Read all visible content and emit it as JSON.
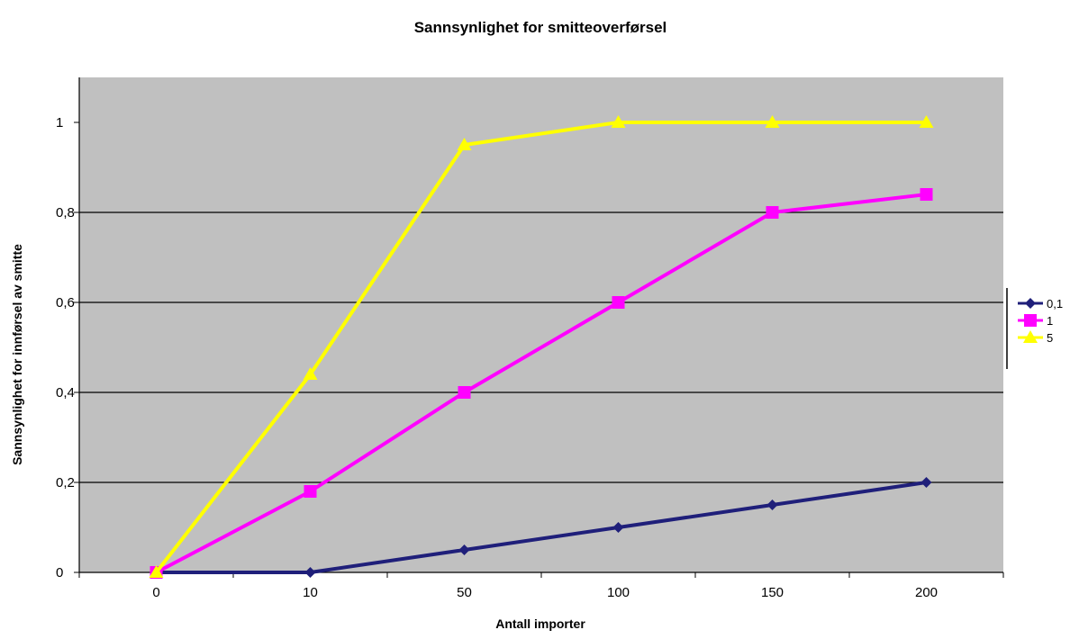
{
  "chart_data": {
    "type": "line",
    "title": "Sannsynlighet for smitteoverførsel",
    "xlabel": "Antall importer",
    "ylabel": "Sannsynlighet for innførsel av smitte",
    "categories": [
      "0",
      "10",
      "50",
      "100",
      "150",
      "200"
    ],
    "ylim": [
      0,
      1.1
    ],
    "yticks": [
      0,
      0.2,
      0.4,
      0.6,
      0.8,
      1
    ],
    "ytick_labels": [
      "0",
      "0,2",
      "0,4",
      "0,6",
      "0,8",
      "1"
    ],
    "grid": "horizontal major lines at 0,4, 0,6 and 0,8",
    "plot_background": "#c0c0c0",
    "legend_position": "right",
    "series": [
      {
        "name": "0,1",
        "values": [
          0,
          0,
          0.05,
          0.1,
          0.15,
          0.2
        ],
        "color": "#1f1f7a",
        "marker": "diamond"
      },
      {
        "name": "1",
        "values": [
          0,
          0.18,
          0.4,
          0.6,
          0.8,
          0.84
        ],
        "color": "#ff00ff",
        "marker": "square"
      },
      {
        "name": "5",
        "values": [
          0,
          0.44,
          0.95,
          1,
          1,
          1
        ],
        "color": "#ffff00",
        "marker": "triangle"
      }
    ]
  }
}
